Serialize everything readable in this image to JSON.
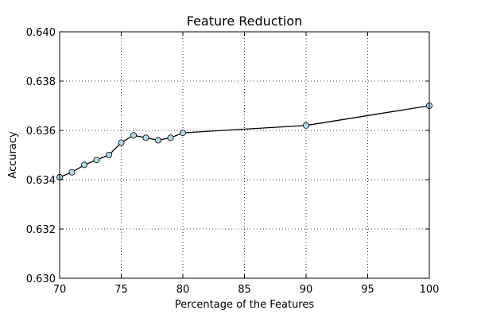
{
  "chart_data": {
    "type": "line",
    "title": "Feature Reduction",
    "xlabel": "Percentage of the Features",
    "ylabel": "Accuracy",
    "xlim": [
      70,
      100
    ],
    "ylim": [
      0.63,
      0.64
    ],
    "x_ticks": [
      "70",
      "75",
      "80",
      "85",
      "90",
      "95",
      "100"
    ],
    "y_ticks": [
      "0.630",
      "0.632",
      "0.634",
      "0.636",
      "0.638",
      "0.640"
    ],
    "grid": true,
    "series": [
      {
        "x": [
          70,
          71,
          72,
          73,
          74,
          75,
          76,
          77,
          78,
          79,
          80,
          90,
          100
        ],
        "y": [
          0.6341,
          0.6343,
          0.6346,
          0.6348,
          0.635,
          0.6355,
          0.6358,
          0.6357,
          0.6356,
          0.6357,
          0.6359,
          0.6362,
          0.637
        ],
        "line_color": "#000000",
        "marker_color": "#add8e6"
      }
    ]
  }
}
